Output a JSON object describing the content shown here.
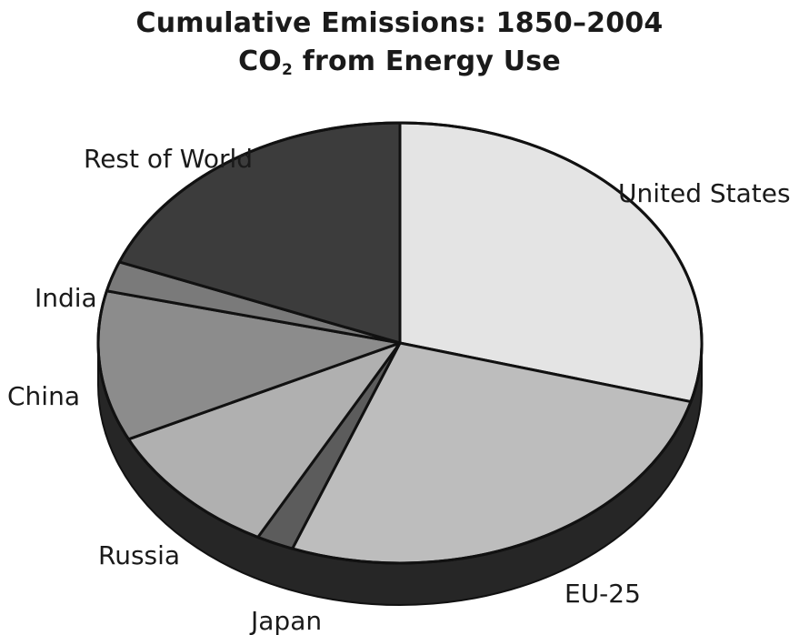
{
  "chart_data": {
    "type": "pie",
    "title": "Cumulative Emissions: 1850–2004",
    "subtitle_prefix": "CO",
    "subtitle_subscript": "2",
    "subtitle_suffix": " from Energy Use",
    "slices": [
      {
        "label": "United States",
        "value": 29.3,
        "color": "#e4e4e4"
      },
      {
        "label": "EU-25",
        "value": 26.5,
        "color": "#bdbdbd"
      },
      {
        "label": "Japan",
        "value": 2.0,
        "color": "#5c5c5c"
      },
      {
        "label": "Russia",
        "value": 10.0,
        "color": "#b0b0b0"
      },
      {
        "label": "China",
        "value": 11.0,
        "color": "#8c8c8c"
      },
      {
        "label": "India",
        "value": 2.2,
        "color": "#7a7a7a"
      },
      {
        "label": "Rest of World",
        "value": 19.0,
        "color": "#3c3c3c"
      }
    ]
  }
}
